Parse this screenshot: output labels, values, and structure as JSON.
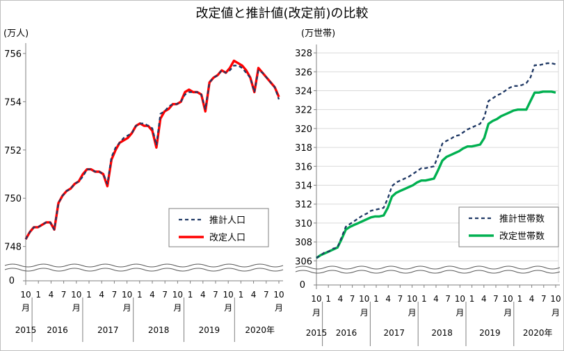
{
  "title": "改定値と推計値(改定前)の比較",
  "colors": {
    "estimate": "#1f3864",
    "revised_pop": "#ff0000",
    "revised_hh": "#00b050",
    "grid": "#d9d9d9"
  },
  "chart_data": [
    {
      "type": "line",
      "unit_label": "(万人)",
      "ylim": [
        747.5,
        756.2
      ],
      "yticks": [
        748,
        750,
        752,
        754,
        756
      ],
      "axis_zero_label": "0",
      "grid": false,
      "legend": {
        "placement": "bottom-right",
        "entries": [
          "推計人口",
          "改定人口"
        ]
      },
      "month_ticks": [
        "10",
        "1",
        "4",
        "7",
        "10",
        "1",
        "4",
        "7",
        "10",
        "1",
        "4",
        "7",
        "10",
        "1",
        "4",
        "7",
        "10",
        "1",
        "4",
        "7",
        "10"
      ],
      "month_unit": "月",
      "years": [
        "2015",
        "2016",
        "2017",
        "2018",
        "2019",
        "2020年"
      ],
      "series": [
        {
          "name": "推計人口",
          "style": "dashed",
          "values": [
            748.3,
            748.6,
            748.8,
            748.8,
            748.9,
            749.0,
            749.0,
            748.7,
            749.8,
            750.1,
            750.3,
            750.4,
            750.6,
            750.7,
            750.9,
            751.2,
            751.2,
            751.1,
            751.1,
            751.0,
            750.6,
            751.7,
            752.1,
            752.3,
            752.5,
            752.6,
            752.7,
            753.0,
            753.1,
            753.1,
            753.0,
            752.9,
            752.2,
            753.5,
            753.6,
            753.8,
            753.9,
            753.9,
            754.0,
            754.3,
            754.4,
            754.4,
            754.4,
            754.3,
            753.7,
            754.8,
            755.0,
            755.1,
            755.3,
            755.2,
            755.3,
            755.5,
            755.5,
            755.4,
            755.2,
            755.0,
            754.4,
            755.3,
            755.2,
            755.0,
            754.8,
            754.6,
            754.1
          ]
        },
        {
          "name": "改定人口",
          "style": "solid",
          "values": [
            748.3,
            748.6,
            748.8,
            748.8,
            748.9,
            749.0,
            749.0,
            748.7,
            749.8,
            750.1,
            750.3,
            750.4,
            750.6,
            750.7,
            751.0,
            751.2,
            751.2,
            751.1,
            751.1,
            751.0,
            750.5,
            751.6,
            752.0,
            752.3,
            752.4,
            752.5,
            752.7,
            753.0,
            753.1,
            753.0,
            753.0,
            752.8,
            752.1,
            753.3,
            753.6,
            753.7,
            753.9,
            753.9,
            754.0,
            754.4,
            754.5,
            754.4,
            754.4,
            754.3,
            753.6,
            754.8,
            755.0,
            755.1,
            755.3,
            755.2,
            755.4,
            755.7,
            755.6,
            755.5,
            755.3,
            755.0,
            754.4,
            755.4,
            755.2,
            755.0,
            754.8,
            754.6,
            754.2
          ]
        }
      ]
    },
    {
      "type": "line",
      "unit_label": "(万世帯)",
      "ylim": [
        305.8,
        328.3
      ],
      "yticks": [
        306,
        308,
        310,
        312,
        314,
        316,
        318,
        320,
        322,
        324,
        326,
        328
      ],
      "axis_zero_label": "0",
      "grid": true,
      "legend": {
        "placement": "bottom-right",
        "entries": [
          "推計世帯数",
          "改定世帯数"
        ]
      },
      "month_ticks": [
        "10",
        "1",
        "4",
        "7",
        "10",
        "1",
        "4",
        "7",
        "10",
        "1",
        "4",
        "7",
        "10",
        "1",
        "4",
        "7",
        "10",
        "1",
        "4",
        "7",
        "10"
      ],
      "month_unit": "月",
      "years": [
        "2015",
        "2016",
        "2017",
        "2018",
        "2019",
        "2020年"
      ],
      "series": [
        {
          "name": "推計世帯数",
          "style": "dashed",
          "values": [
            306.3,
            306.6,
            306.9,
            307.0,
            307.3,
            307.4,
            308.5,
            309.6,
            309.9,
            310.2,
            310.5,
            310.8,
            311.0,
            311.3,
            311.4,
            311.5,
            311.6,
            312.6,
            313.9,
            314.3,
            314.5,
            314.7,
            314.9,
            315.2,
            315.5,
            315.8,
            315.8,
            315.9,
            316.0,
            317.1,
            318.4,
            318.7,
            318.9,
            319.2,
            319.3,
            319.6,
            319.9,
            320.1,
            320.3,
            320.5,
            321.2,
            322.9,
            323.2,
            323.5,
            323.7,
            324.0,
            324.3,
            324.5,
            324.5,
            324.6,
            324.8,
            325.4,
            326.7,
            326.7,
            326.8,
            326.9,
            326.9,
            326.8
          ]
        },
        {
          "name": "改定世帯数",
          "style": "solid",
          "values": [
            306.3,
            306.6,
            306.8,
            307.0,
            307.2,
            307.4,
            308.3,
            309.3,
            309.6,
            309.8,
            310.0,
            310.2,
            310.4,
            310.6,
            310.7,
            310.7,
            310.8,
            311.6,
            312.8,
            313.2,
            313.4,
            313.6,
            313.8,
            314.0,
            314.3,
            314.5,
            314.5,
            314.6,
            314.7,
            315.6,
            316.6,
            317.0,
            317.2,
            317.4,
            317.6,
            317.9,
            318.1,
            318.1,
            318.2,
            318.3,
            319.0,
            320.5,
            320.8,
            321.0,
            321.3,
            321.5,
            321.7,
            321.9,
            322.0,
            322.0,
            322.0,
            322.9,
            323.8,
            323.8,
            323.9,
            323.9,
            323.9,
            323.8
          ]
        }
      ]
    }
  ]
}
